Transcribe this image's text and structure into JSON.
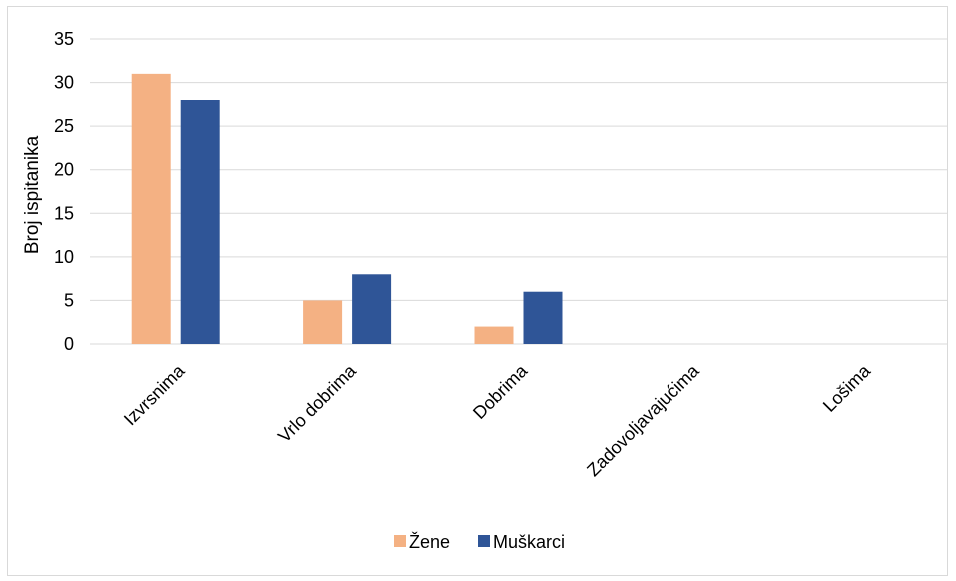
{
  "chart_data": {
    "type": "bar",
    "categories": [
      "Izvrsnima",
      "Vrlo dobrima",
      "Dobrima",
      "Zadovoljavajućima",
      "Lošima"
    ],
    "series": [
      {
        "name": "Žene",
        "values": [
          31,
          5,
          2,
          0,
          0
        ],
        "color": "#f4b183"
      },
      {
        "name": "Muškarci",
        "values": [
          28,
          8,
          6,
          0,
          0
        ],
        "color": "#2f5597"
      }
    ],
    "ylabel": "Broj ispitanika",
    "ylim": [
      0,
      35
    ],
    "yticks": [
      0,
      5,
      10,
      15,
      20,
      25,
      30,
      35
    ],
    "grid": true,
    "legend_position": "bottom"
  }
}
